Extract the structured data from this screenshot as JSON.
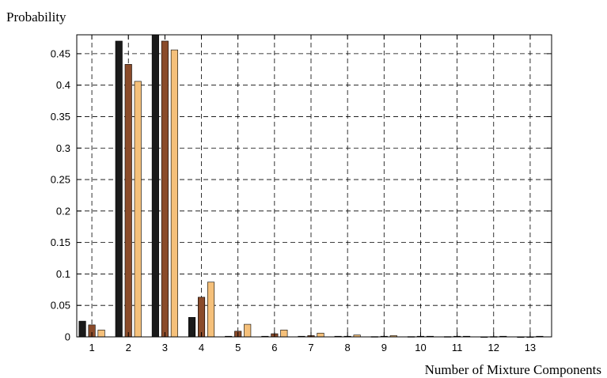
{
  "chart_data": {
    "type": "bar",
    "title": "",
    "ylabel": "Probability",
    "xlabel": "Number of Mixture Components",
    "categories": [
      "1",
      "2",
      "3",
      "4",
      "5",
      "6",
      "7",
      "8",
      "9",
      "10",
      "11",
      "12",
      "13"
    ],
    "yticks": [
      "0",
      "0.05",
      "0.1",
      "0.15",
      "0.2",
      "0.25",
      "0.3",
      "0.35",
      "0.4",
      "0.45"
    ],
    "ytick_values": [
      0,
      0.05,
      0.1,
      0.15,
      0.2,
      0.25,
      0.3,
      0.35,
      0.4,
      0.45
    ],
    "ylim": [
      0,
      0.48
    ],
    "grid": true,
    "series": [
      {
        "color": "#1a1a1a",
        "values": [
          0.025,
          0.47,
          0.48,
          0.031,
          0.001,
          0.001,
          0.001,
          0.001,
          0.0005,
          0.0005,
          0.0005,
          0.0002,
          0.0001
        ]
      },
      {
        "color": "#8a4b2a",
        "values": [
          0.019,
          0.433,
          0.47,
          0.063,
          0.009,
          0.005,
          0.002,
          0.001,
          0.001,
          0.001,
          0.001,
          0.0005,
          0.0002
        ]
      },
      {
        "color": "#f5c07a",
        "values": [
          0.011,
          0.406,
          0.456,
          0.087,
          0.02,
          0.011,
          0.006,
          0.003,
          0.002,
          0.001,
          0.001,
          0.001,
          0.001
        ]
      }
    ]
  }
}
